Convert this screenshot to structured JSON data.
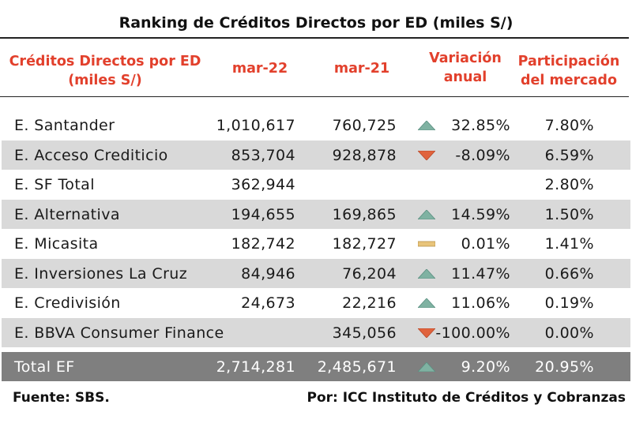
{
  "title": "Ranking de Créditos Directos por ED (miles S/)",
  "header": {
    "col1_line1": "Créditos Directos por ED",
    "col1_line2": "(miles S/)",
    "col2": "mar-22",
    "col3": "mar-21",
    "col4_line1": "Variación",
    "col4_line2": "anual",
    "col5_line1": "Participación",
    "col5_line2": "del mercado"
  },
  "colors": {
    "header": "#e2402c",
    "up": "#7fb2a2",
    "down": "#e0633d",
    "flat": "#e8c47a",
    "shade": "#d9d9d9",
    "total": "#7f7f7f"
  },
  "rows": [
    {
      "name": "E. Santander",
      "mar22": "1,010,617",
      "mar21": "760,725",
      "trend": "up-arrow-icon",
      "var": "32.85%",
      "part": "7.80%"
    },
    {
      "name": "E. Acceso Crediticio",
      "mar22": "853,704",
      "mar21": "928,878",
      "trend": "down-arrow-icon",
      "var": "-8.09%",
      "part": "6.59%"
    },
    {
      "name": "E. SF Total",
      "mar22": "362,944",
      "mar21": "",
      "trend": "",
      "var": "",
      "part": "2.80%"
    },
    {
      "name": "E. Alternativa",
      "mar22": "194,655",
      "mar21": "169,865",
      "trend": "up-arrow-icon",
      "var": "14.59%",
      "part": "1.50%"
    },
    {
      "name": "E. Micasita",
      "mar22": "182,742",
      "mar21": "182,727",
      "trend": "flat-icon",
      "var": "0.01%",
      "part": "1.41%"
    },
    {
      "name": "E. Inversiones La Cruz",
      "mar22": "84,946",
      "mar21": "76,204",
      "trend": "up-arrow-icon",
      "var": "11.47%",
      "part": "0.66%"
    },
    {
      "name": "E. Credivisión",
      "mar22": "24,673",
      "mar21": "22,216",
      "trend": "up-arrow-icon",
      "var": "11.06%",
      "part": "0.19%"
    },
    {
      "name": "E. BBVA Consumer Finance",
      "mar22": "",
      "mar21": "345,056",
      "trend": "down-arrow-icon",
      "var": "-100.00%",
      "part": "0.00%"
    }
  ],
  "total": {
    "name": "Total EF",
    "mar22": "2,714,281",
    "mar21": "2,485,671",
    "trend": "up-arrow-icon",
    "var": "9.20%",
    "part": "20.95%"
  },
  "footer": {
    "source": "Fuente: SBS.",
    "author": "Por: ICC Instituto de Créditos y Cobranzas"
  }
}
